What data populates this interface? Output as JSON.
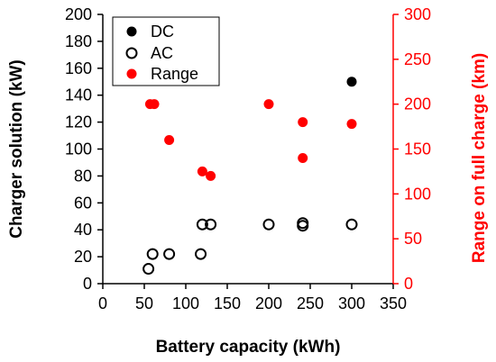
{
  "chart_data": {
    "type": "scatter",
    "xlabel": "Battery capacity (kWh)",
    "ylabel_left": "Charger solution (kW)",
    "ylabel_right": "Range on full charge (km)",
    "xlim": [
      0,
      350
    ],
    "ylim_left": [
      0,
      200
    ],
    "ylim_right": [
      0,
      300
    ],
    "x_ticks": [
      0,
      50,
      100,
      150,
      200,
      250,
      300,
      350
    ],
    "y_left_ticks": [
      0,
      20,
      40,
      60,
      80,
      100,
      120,
      140,
      160,
      180,
      200
    ],
    "y_right_ticks": [
      0,
      50,
      100,
      150,
      200,
      250,
      300
    ],
    "grid": false,
    "legend_position": "top-left",
    "colors": {
      "dc": "#000000",
      "ac": "#000000",
      "range": "#ff0000",
      "right_axis": "#ff0000"
    },
    "series": [
      {
        "name": "DC",
        "axis": "left",
        "marker": "filled-circle",
        "points": [
          [
            300,
            150
          ]
        ]
      },
      {
        "name": "AC",
        "axis": "left",
        "marker": "hollow-circle",
        "points": [
          [
            55,
            11
          ],
          [
            60,
            22
          ],
          [
            80,
            22
          ],
          [
            118,
            22
          ],
          [
            120,
            44
          ],
          [
            130,
            44
          ],
          [
            200,
            44
          ],
          [
            241,
            43
          ],
          [
            241,
            45
          ],
          [
            300,
            44
          ]
        ]
      },
      {
        "name": "Range",
        "axis": "right",
        "marker": "filled-circle",
        "points": [
          [
            57,
            200
          ],
          [
            62,
            200
          ],
          [
            80,
            160
          ],
          [
            120,
            125
          ],
          [
            130,
            120
          ],
          [
            200,
            200
          ],
          [
            241,
            180
          ],
          [
            241,
            140
          ],
          [
            300,
            178
          ]
        ]
      }
    ]
  }
}
